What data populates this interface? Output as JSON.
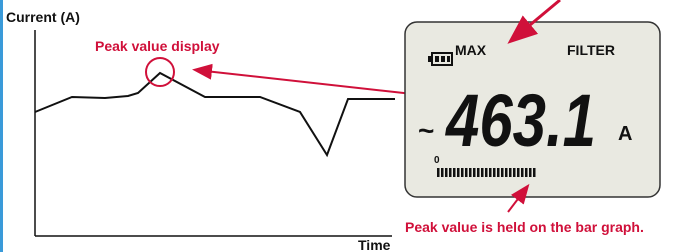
{
  "graph": {
    "y_axis_label": "Current (A)",
    "x_axis_label": "Time",
    "peak_note": "Peak value display"
  },
  "display": {
    "max_label": "MAX",
    "filter_label": "FILTER",
    "reading": "463.1",
    "unit": "A",
    "ac_symbol": "~",
    "bar_zero": "0"
  },
  "bar_graph_note": "Peak value is held on the bar graph."
}
